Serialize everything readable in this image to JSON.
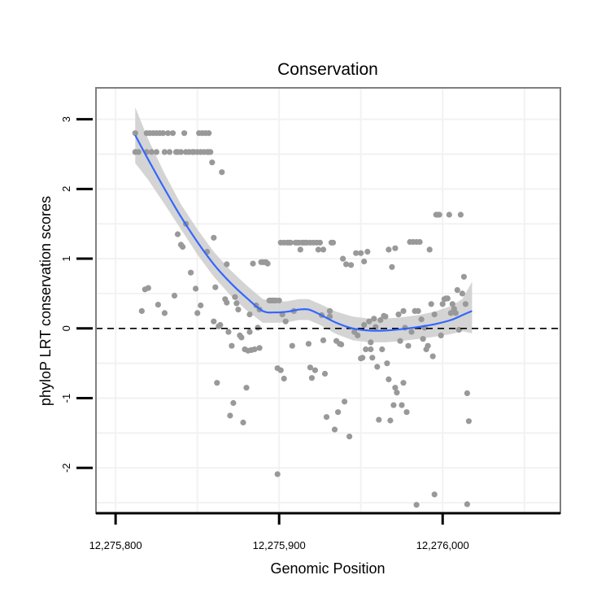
{
  "chart_data": {
    "type": "scatter",
    "title": "Conservation",
    "xlabel": "Genomic Position",
    "ylabel": "phyloP LRT conservation scores",
    "xlim": [
      12275788,
      12276072
    ],
    "ylim": [
      -2.65,
      3.45
    ],
    "x_ticks": [
      12275800,
      12275900,
      12276000
    ],
    "x_tick_labels": [
      "12,275,800",
      "12,275,900",
      "12,276,000"
    ],
    "y_ticks": [
      -2,
      -1,
      0,
      1,
      2,
      3
    ],
    "y_tick_labels": [
      "-2",
      "-1",
      "0",
      "1",
      "2",
      "3"
    ],
    "reference_line": {
      "y": 0,
      "style": "dashed"
    },
    "grid": true,
    "colors": {
      "points": "#999999",
      "smooth_line": "#3366ff",
      "confidence_band": "#cccccc",
      "panel_border": "#7f7f7f",
      "grid": "#f2f2f2"
    },
    "points": [
      [
        12275812,
        2.8
      ],
      [
        12275812,
        2.53
      ],
      [
        12275814,
        2.53
      ],
      [
        12275816,
        0.25
      ],
      [
        12275818,
        0.56
      ],
      [
        12275819,
        2.53
      ],
      [
        12275819,
        2.8
      ],
      [
        12275820,
        0.58
      ],
      [
        12275821,
        2.8
      ],
      [
        12275822,
        2.53
      ],
      [
        12275823,
        2.8
      ],
      [
        12275825,
        2.53
      ],
      [
        12275825,
        2.8
      ],
      [
        12275826,
        0.34
      ],
      [
        12275827,
        2.8
      ],
      [
        12275829,
        2.8
      ],
      [
        12275830,
        2.53
      ],
      [
        12275830,
        0.22
      ],
      [
        12275832,
        2.8
      ],
      [
        12275833,
        2.53
      ],
      [
        12275835,
        2.8
      ],
      [
        12275836,
        0.47
      ],
      [
        12275837,
        2.53
      ],
      [
        12275838,
        1.35
      ],
      [
        12275838,
        2.53
      ],
      [
        12275840,
        1.2
      ],
      [
        12275840,
        2.53
      ],
      [
        12275841,
        1.17
      ],
      [
        12275842,
        2.8
      ],
      [
        12275843,
        2.53
      ],
      [
        12275843,
        1.5
      ],
      [
        12275845,
        2.53
      ],
      [
        12275846,
        0.8
      ],
      [
        12275847,
        2.53
      ],
      [
        12275848,
        2.53
      ],
      [
        12275849,
        0.57
      ],
      [
        12275850,
        2.53
      ],
      [
        12275850,
        0.22
      ],
      [
        12275851,
        2.8
      ],
      [
        12275852,
        0.33
      ],
      [
        12275852,
        2.53
      ],
      [
        12275853,
        2.8
      ],
      [
        12275854,
        2.53
      ],
      [
        12275855,
        2.8
      ],
      [
        12275856,
        2.53
      ],
      [
        12275856,
        1.1
      ],
      [
        12275857,
        2.53
      ],
      [
        12275857,
        2.8
      ],
      [
        12275858,
        2.53
      ],
      [
        12275859,
        2.38
      ],
      [
        12275860,
        0.1
      ],
      [
        12275860,
        1.3
      ],
      [
        12275861,
        0.59
      ],
      [
        12275862,
        -0.78
      ],
      [
        12275863,
        0.03
      ],
      [
        12275864,
        0.05
      ],
      [
        12275865,
        2.24
      ],
      [
        12275867,
        0.42
      ],
      [
        12275868,
        0.92
      ],
      [
        12275868,
        0.37
      ],
      [
        12275869,
        -0.05
      ],
      [
        12275870,
        -1.25
      ],
      [
        12275871,
        -0.25
      ],
      [
        12275872,
        -1.07
      ],
      [
        12275873,
        0.45
      ],
      [
        12275874,
        0.36
      ],
      [
        12275875,
        0.27
      ],
      [
        12275876,
        -0.1
      ],
      [
        12275877,
        -0.13
      ],
      [
        12275878,
        -1.35
      ],
      [
        12275879,
        -0.3
      ],
      [
        12275880,
        -0.85
      ],
      [
        12275881,
        -0.32
      ],
      [
        12275882,
        0.2
      ],
      [
        12275882,
        -0.05
      ],
      [
        12275883,
        -0.31
      ],
      [
        12275884,
        0.93
      ],
      [
        12275885,
        -0.3
      ],
      [
        12275886,
        0.33
      ],
      [
        12275887,
        0.01
      ],
      [
        12275888,
        0.27
      ],
      [
        12275888,
        -0.28
      ],
      [
        12275889,
        0.95
      ],
      [
        12275890,
        0.95
      ],
      [
        12275891,
        0.95
      ],
      [
        12275892,
        0.95
      ],
      [
        12275893,
        0.93
      ],
      [
        12275894,
        0.4
      ],
      [
        12275895,
        0.4
      ],
      [
        12275896,
        0.4
      ],
      [
        12275897,
        0.4
      ],
      [
        12275898,
        0.4
      ],
      [
        12275899,
        -0.57
      ],
      [
        12275899,
        -2.09
      ],
      [
        12275900,
        0.4
      ],
      [
        12275901,
        -0.6
      ],
      [
        12275901,
        1.23
      ],
      [
        12275902,
        0.2
      ],
      [
        12275903,
        -0.72
      ],
      [
        12275903,
        1.23
      ],
      [
        12275904,
        0.1
      ],
      [
        12275905,
        1.23
      ],
      [
        12275906,
        1.23
      ],
      [
        12275907,
        1.23
      ],
      [
        12275908,
        -0.25
      ],
      [
        12275909,
        0.25
      ],
      [
        12275910,
        1.23
      ],
      [
        12275911,
        1.23
      ],
      [
        12275912,
        1.23
      ],
      [
        12275913,
        1.13
      ],
      [
        12275914,
        1.23
      ],
      [
        12275915,
        1.23
      ],
      [
        12275916,
        1.23
      ],
      [
        12275917,
        1.23
      ],
      [
        12275918,
        -0.22
      ],
      [
        12275919,
        -0.56
      ],
      [
        12275919,
        1.23
      ],
      [
        12275920,
        -0.71
      ],
      [
        12275921,
        1.23
      ],
      [
        12275922,
        -0.6
      ],
      [
        12275923,
        1.23
      ],
      [
        12275924,
        1.13
      ],
      [
        12275925,
        1.23
      ],
      [
        12275926,
        0.19
      ],
      [
        12275927,
        1.13
      ],
      [
        12275927,
        -0.17
      ],
      [
        12275928,
        -0.65
      ],
      [
        12275929,
        -1.27
      ],
      [
        12275931,
        0.17
      ],
      [
        12275931,
        0.25
      ],
      [
        12275932,
        1.23
      ],
      [
        12275933,
        1.23
      ],
      [
        12275934,
        -1.45
      ],
      [
        12275935,
        -0.18
      ],
      [
        12275936,
        -1.2
      ],
      [
        12275937,
        -0.22
      ],
      [
        12275938,
        -0.23
      ],
      [
        12275939,
        1
      ],
      [
        12275940,
        -1.05
      ],
      [
        12275941,
        0.92
      ],
      [
        12275943,
        -1.55
      ],
      [
        12275944,
        0.91
      ],
      [
        12275946,
        -0.05
      ],
      [
        12275947,
        1.08
      ],
      [
        12275948,
        -0.1
      ],
      [
        12275950,
        1.08
      ],
      [
        12275951,
        -0.42
      ],
      [
        12275952,
        0.96
      ],
      [
        12275952,
        0.05
      ],
      [
        12275953,
        -0.3
      ],
      [
        12275954,
        1.1
      ],
      [
        12275955,
        0.1
      ],
      [
        12275956,
        -0.3
      ],
      [
        12275957,
        -0.42
      ],
      [
        12275958,
        0.14
      ],
      [
        12275959,
        0.02
      ],
      [
        12275960,
        -0.55
      ],
      [
        12275961,
        -1.31
      ],
      [
        12275962,
        0.12
      ],
      [
        12275963,
        -0.3
      ],
      [
        12275964,
        0.18
      ],
      [
        12275965,
        0.17
      ],
      [
        12275966,
        -0.5
      ],
      [
        12275967,
        1.13
      ],
      [
        12275967,
        -0.73
      ],
      [
        12275968,
        -1.32
      ],
      [
        12275969,
        0.88
      ],
      [
        12275970,
        -1.1
      ],
      [
        12275971,
        -0.85
      ],
      [
        12275971,
        1.15
      ],
      [
        12275972,
        -0.92
      ],
      [
        12275973,
        0.2
      ],
      [
        12275974,
        -0.18
      ],
      [
        12275975,
        -1.1
      ],
      [
        12275976,
        -0.78
      ],
      [
        12275976,
        0.25
      ],
      [
        12275977,
        0.01
      ],
      [
        12275978,
        -1.2
      ],
      [
        12275979,
        -0.25
      ],
      [
        12275980,
        1.24
      ],
      [
        12275981,
        -0.05
      ],
      [
        12275982,
        1.24
      ],
      [
        12275983,
        0.25
      ],
      [
        12275984,
        1.24
      ],
      [
        12275985,
        0.25
      ],
      [
        12275986,
        1.24
      ],
      [
        12275987,
        0.13
      ],
      [
        12275988,
        -0.15
      ],
      [
        12275989,
        0.01
      ],
      [
        12275990,
        -0.3
      ],
      [
        12275991,
        -0.25
      ],
      [
        12275992,
        1.13
      ],
      [
        12275993,
        0.35
      ],
      [
        12275994,
        -0.4
      ],
      [
        12275995,
        0.2
      ],
      [
        12275996,
        1.63
      ],
      [
        12275997,
        1.63
      ],
      [
        12275998,
        1.63
      ],
      [
        12275999,
        -0.1
      ],
      [
        12276000,
        0.35
      ],
      [
        12276001,
        0.42
      ],
      [
        12276002,
        0.43
      ],
      [
        12276003,
        0.43
      ],
      [
        12276004,
        1.63
      ],
      [
        12276005,
        0.22
      ],
      [
        12276006,
        0.35
      ],
      [
        12276007,
        0.28
      ],
      [
        12276008,
        0.22
      ],
      [
        12276009,
        0.55
      ],
      [
        12276010,
        -0.02
      ],
      [
        12276011,
        1.63
      ],
      [
        12276012,
        0.5
      ],
      [
        12276013,
        0.74
      ],
      [
        12276014,
        0.35
      ],
      [
        12276015,
        -0.93
      ],
      [
        12276015,
        -2.52
      ],
      [
        12276016,
        -1.33
      ],
      [
        12275984,
        -2.53
      ],
      [
        12275995,
        -2.38
      ],
      [
        12275950,
        -0.43
      ],
      [
        12275956,
        -0.2
      ]
    ],
    "smooth_fit": [
      [
        12275812,
        2.77
      ],
      [
        12275820,
        2.42
      ],
      [
        12275830,
        2.0
      ],
      [
        12275840,
        1.6
      ],
      [
        12275850,
        1.24
      ],
      [
        12275860,
        0.92
      ],
      [
        12275870,
        0.66
      ],
      [
        12275880,
        0.44
      ],
      [
        12275890,
        0.25
      ],
      [
        12275898,
        0.23
      ],
      [
        12275905,
        0.24
      ],
      [
        12275912,
        0.27
      ],
      [
        12275918,
        0.27
      ],
      [
        12275925,
        0.2
      ],
      [
        12275935,
        0.08
      ],
      [
        12275945,
        0.0
      ],
      [
        12275955,
        -0.03
      ],
      [
        12275965,
        -0.03
      ],
      [
        12275975,
        -0.01
      ],
      [
        12275985,
        0.02
      ],
      [
        12275995,
        0.06
      ],
      [
        12276005,
        0.12
      ],
      [
        12276012,
        0.19
      ],
      [
        12276018,
        0.25
      ]
    ],
    "confidence_band": [
      [
        12275812,
        2.37,
        3.17
      ],
      [
        12275820,
        2.13,
        2.71
      ],
      [
        12275830,
        1.78,
        2.22
      ],
      [
        12275840,
        1.42,
        1.78
      ],
      [
        12275850,
        1.06,
        1.42
      ],
      [
        12275860,
        0.74,
        1.1
      ],
      [
        12275870,
        0.48,
        0.84
      ],
      [
        12275880,
        0.26,
        0.62
      ],
      [
        12275890,
        0.08,
        0.42
      ],
      [
        12275898,
        0.08,
        0.38
      ],
      [
        12275905,
        0.09,
        0.39
      ],
      [
        12275912,
        0.12,
        0.42
      ],
      [
        12275918,
        0.12,
        0.42
      ],
      [
        12275925,
        0.05,
        0.35
      ],
      [
        12275935,
        -0.08,
        0.24
      ],
      [
        12275945,
        -0.17,
        0.17
      ],
      [
        12275955,
        -0.2,
        0.14
      ],
      [
        12275965,
        -0.2,
        0.14
      ],
      [
        12275975,
        -0.18,
        0.16
      ],
      [
        12275985,
        -0.15,
        0.19
      ],
      [
        12275995,
        -0.12,
        0.24
      ],
      [
        12276005,
        -0.08,
        0.32
      ],
      [
        12276012,
        -0.04,
        0.42
      ],
      [
        12276018,
        -0.07,
        0.67
      ]
    ]
  }
}
